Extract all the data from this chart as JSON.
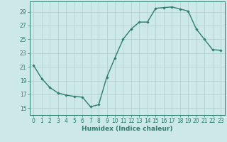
{
  "x": [
    0,
    1,
    2,
    3,
    4,
    5,
    6,
    7,
    8,
    9,
    10,
    11,
    12,
    13,
    14,
    15,
    16,
    17,
    18,
    19,
    20,
    21,
    22,
    23
  ],
  "y": [
    21.2,
    19.3,
    18.0,
    17.2,
    16.9,
    16.7,
    16.6,
    15.2,
    15.5,
    19.5,
    22.3,
    25.0,
    26.5,
    27.5,
    27.5,
    29.5,
    29.6,
    29.7,
    29.4,
    29.1,
    26.5,
    25.0,
    23.5,
    23.4
  ],
  "line_color": "#2e7d6e",
  "marker": "D",
  "marker_size": 1.8,
  "bg_color": "#cce8e8",
  "grid_color_major": "#b0cccc",
  "grid_color_minor": "#b0cccc",
  "xlabel": "Humidex (Indice chaleur)",
  "xlim": [
    -0.5,
    23.5
  ],
  "ylim": [
    14.0,
    30.5
  ],
  "yticks": [
    15,
    17,
    19,
    21,
    23,
    25,
    27,
    29
  ],
  "xticks": [
    0,
    1,
    2,
    3,
    4,
    5,
    6,
    7,
    8,
    9,
    10,
    11,
    12,
    13,
    14,
    15,
    16,
    17,
    18,
    19,
    20,
    21,
    22,
    23
  ],
  "tick_label_size": 5.5,
  "xlabel_size": 6.5,
  "line_width": 1.0
}
